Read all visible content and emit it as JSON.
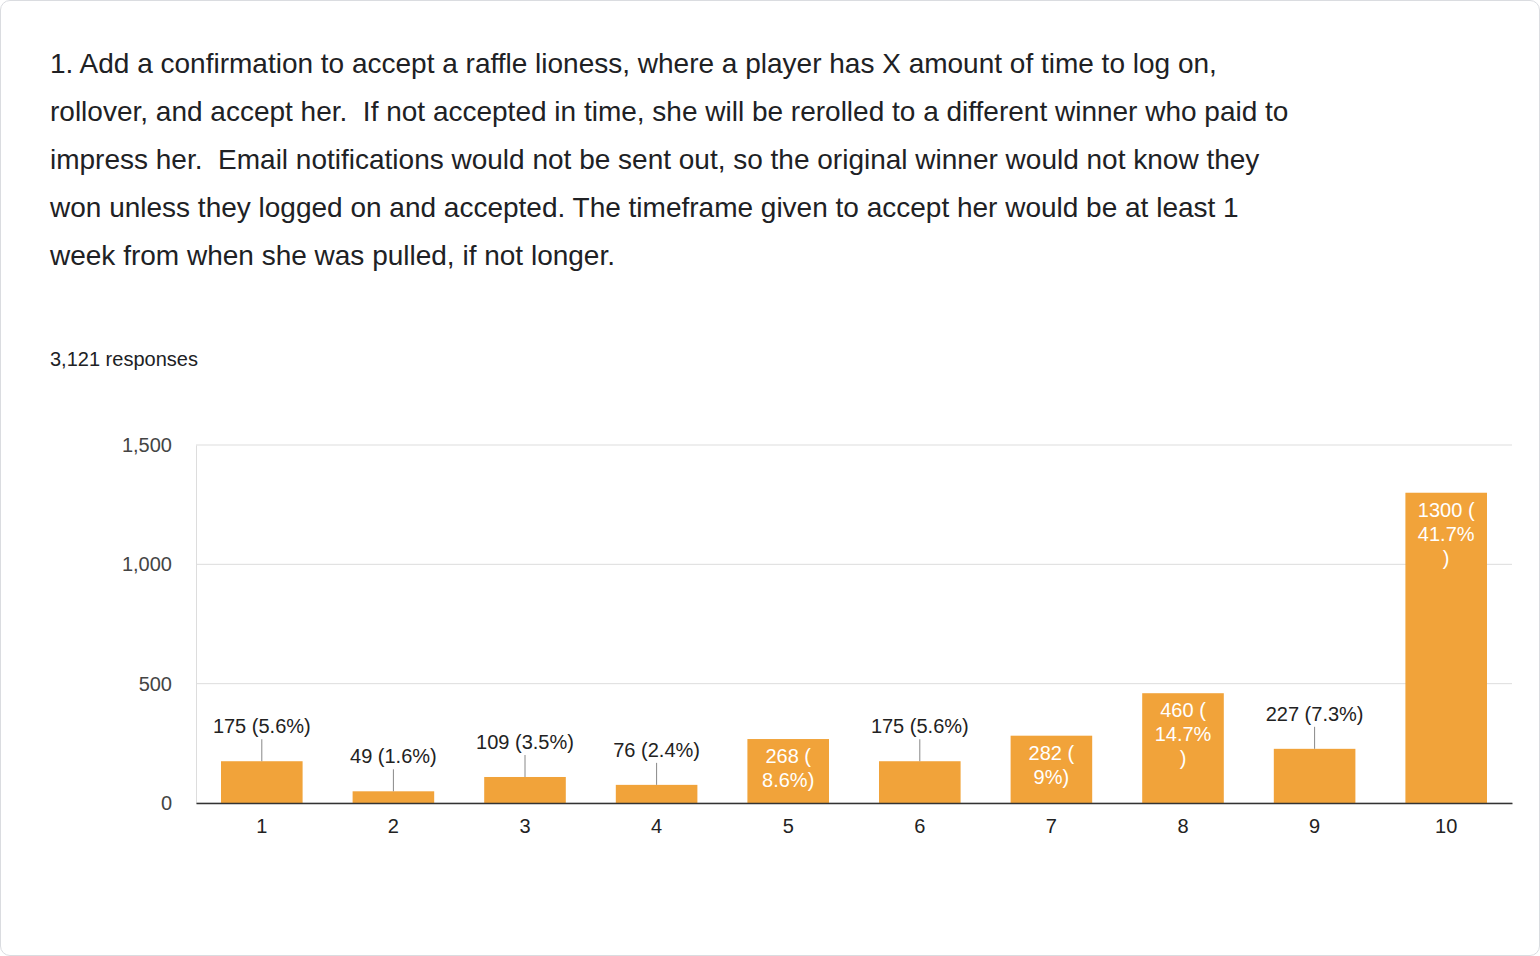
{
  "chart_data": {
    "type": "bar",
    "title": "1. Add a confirmation to accept a raffle lioness, where a player has X amount of time to log on, rollover, and accept her.  If not accepted in time, she will be rerolled to a different winner who paid to impress her.  Email notifications would not be sent out, so the original winner would not know they won unless they logged on and accepted. The timeframe given to accept her would be at least 1 week from when she was pulled, if not longer.",
    "subtitle": "3,121 responses",
    "categories": [
      "1",
      "2",
      "3",
      "4",
      "5",
      "6",
      "7",
      "8",
      "9",
      "10"
    ],
    "values": [
      175,
      49,
      109,
      76,
      268,
      175,
      282,
      460,
      227,
      1300
    ],
    "value_labels": [
      "175 (5.6%)",
      "49 (1.6%)",
      "109 (3.5%)",
      "76 (2.4%)",
      "268 (8.6%)",
      "175 (5.6%)",
      "282 (9%)",
      "460 (14.7%)",
      "227 (7.3%)",
      "1300 (41.7%)"
    ],
    "color": "#f1a33a",
    "ylim": [
      0,
      1500
    ],
    "yticks": [
      0,
      500,
      {
        "value": 1000,
        "label": "1,000"
      },
      {
        "value": 1500,
        "label": "1,500"
      }
    ],
    "grid": true,
    "data_labels": true
  }
}
